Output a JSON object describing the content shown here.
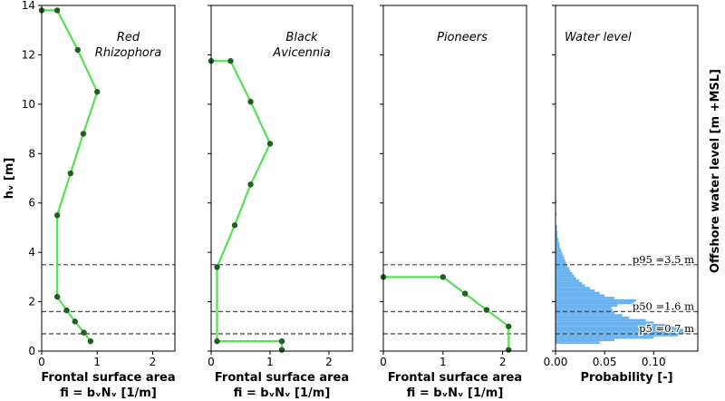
{
  "chart_data": {
    "type": "line",
    "shared_ylabel": "hᵥ [m]",
    "right_ylabel": "Offshore water level [m +MSL]",
    "ylim": [
      0,
      14
    ],
    "yticks": [
      0,
      2,
      4,
      6,
      8,
      10,
      12,
      14
    ],
    "hlines": [
      0.7,
      1.6,
      3.5
    ],
    "line_color": "#55e055",
    "marker_color": "#1f5f1f",
    "bar_color": "#6ab2f0",
    "hline_color": "#555555",
    "panels": [
      {
        "title": [
          "Red",
          "Rhizophora"
        ],
        "xlabel": [
          "Frontal surface area",
          "fi = bᵥNᵥ [1/m]"
        ],
        "xlim": [
          0,
          2.4
        ],
        "xticks": [
          0,
          1,
          2
        ],
        "xticklabels": [
          "0",
          "1",
          "2"
        ],
        "x": [
          0.0,
          0.28,
          0.65,
          1.0,
          0.75,
          0.52,
          0.28,
          0.28,
          0.45,
          0.6,
          0.76,
          0.88
        ],
        "y": [
          13.8,
          13.8,
          12.2,
          10.5,
          8.8,
          7.2,
          5.5,
          2.2,
          1.65,
          1.2,
          0.75,
          0.4
        ]
      },
      {
        "title": [
          "Black",
          "Avicennia"
        ],
        "xlabel": [
          "Frontal surface area",
          "fi = bᵥNᵥ [1/m]"
        ],
        "xlim": [
          0,
          2.4
        ],
        "xticks": [
          0,
          1,
          2
        ],
        "xticklabels": [
          "0",
          "1",
          "2"
        ],
        "x": [
          0.0,
          0.33,
          0.67,
          1.0,
          0.67,
          0.4,
          0.1,
          0.1,
          1.2,
          1.2
        ],
        "y": [
          11.75,
          11.75,
          10.1,
          8.4,
          6.75,
          5.1,
          3.4,
          0.4,
          0.4,
          0.05
        ]
      },
      {
        "title": [
          "Pioneers"
        ],
        "xlabel": [
          "Frontal surface area",
          "fi = bᵥNᵥ [1/m]"
        ],
        "xlim": [
          0,
          2.4
        ],
        "xticks": [
          0,
          1,
          2
        ],
        "xticklabels": [
          "0",
          "1",
          "2"
        ],
        "x": [
          0.0,
          1.0,
          1.37,
          1.73,
          2.1,
          2.1
        ],
        "y": [
          3.0,
          3.0,
          2.33,
          1.67,
          1.0,
          0.05
        ]
      },
      {
        "title": [
          "Water level"
        ],
        "xlabel": [
          "Probability [-]"
        ],
        "xlim": [
          0,
          0.145
        ],
        "xticks": [
          0,
          0.05,
          0.1
        ],
        "xticklabels": [
          "0.00",
          "0.05",
          "0.10"
        ],
        "bin_width": 0.1,
        "bins_start": [
          0.3,
          0.4,
          0.5,
          0.6,
          0.7,
          0.8,
          0.9,
          1.0,
          1.1,
          1.2,
          1.3,
          1.4,
          1.5,
          1.6,
          1.7,
          1.8,
          1.9,
          2.0,
          2.1,
          2.2,
          2.3,
          2.4,
          2.5,
          2.6,
          2.7,
          2.8,
          2.9,
          3.0,
          3.1,
          3.2,
          3.3,
          3.4,
          3.5,
          3.6,
          3.7,
          3.8,
          3.9,
          4.0,
          4.1,
          4.2,
          4.3,
          4.4,
          4.5,
          4.6,
          4.7,
          4.8,
          4.9,
          5.0,
          5.5,
          6.0
        ],
        "probabilities": [
          0.045,
          0.06,
          0.1,
          0.125,
          0.135,
          0.13,
          0.125,
          0.115,
          0.1,
          0.092,
          0.075,
          0.068,
          0.06,
          0.058,
          0.057,
          0.063,
          0.08,
          0.082,
          0.06,
          0.05,
          0.045,
          0.04,
          0.035,
          0.03,
          0.027,
          0.024,
          0.021,
          0.019,
          0.017,
          0.015,
          0.014,
          0.012,
          0.011,
          0.01,
          0.009,
          0.008,
          0.007,
          0.006,
          0.005,
          0.004,
          0.004,
          0.003,
          0.003,
          0.002,
          0.002,
          0.002,
          0.0015,
          0.0015,
          0.001,
          0.001
        ],
        "annotations": [
          {
            "text": "p95 =3.5 m",
            "y": 3.5
          },
          {
            "text": "p50 =1.6 m",
            "y": 1.6
          },
          {
            "text": "p5 =0.7 m",
            "y": 0.7
          }
        ]
      }
    ]
  }
}
